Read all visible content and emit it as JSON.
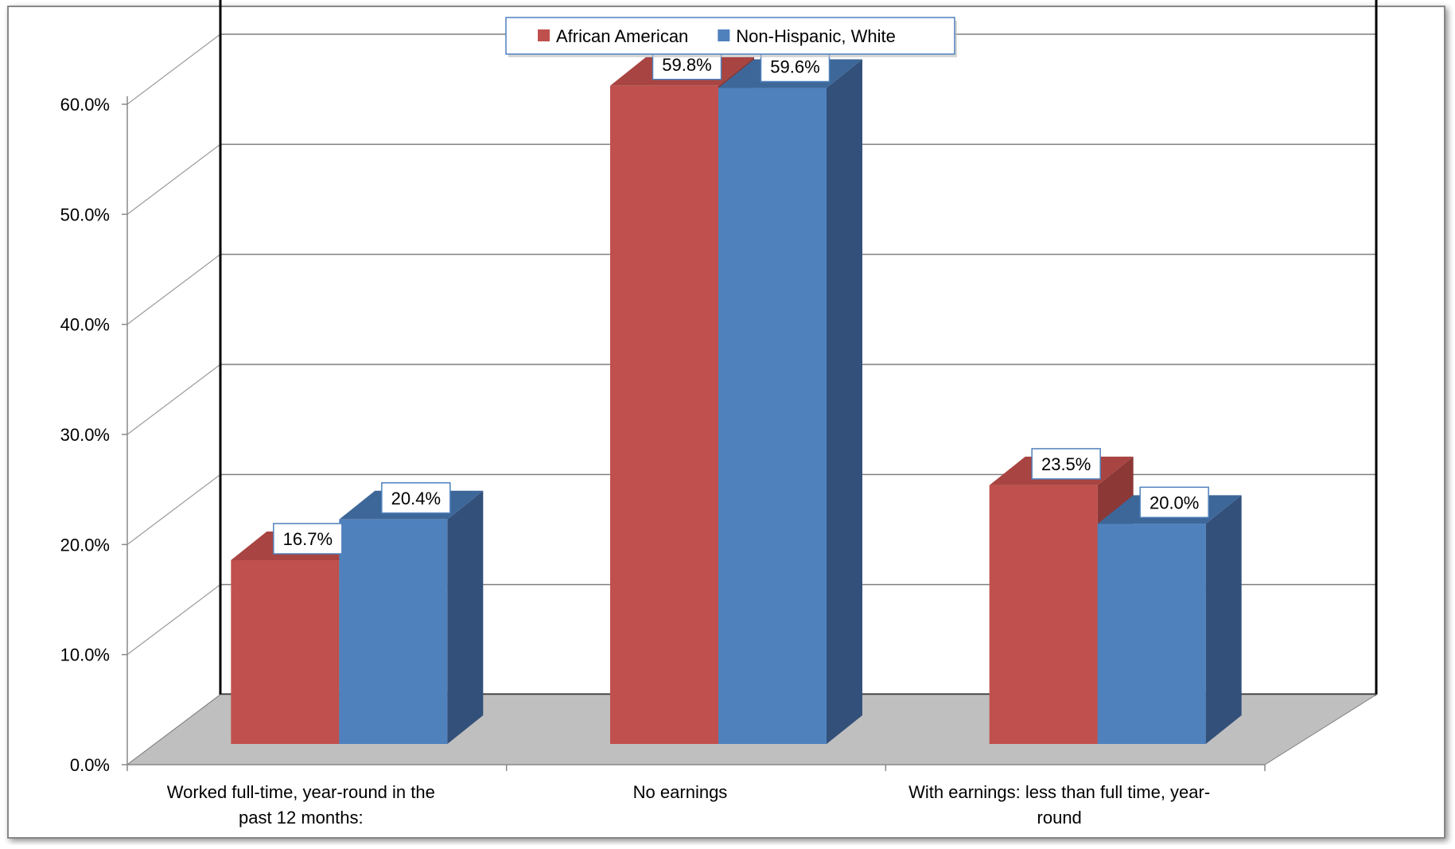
{
  "chart_data": {
    "type": "bar",
    "style": "3d-clustered-column",
    "title": "",
    "xlabel": "",
    "ylabel": "",
    "categories": [
      "Worked full-time, year-round in the past 12 months:",
      "No earnings",
      "With earnings: less than full time, year-round"
    ],
    "category_lines": [
      [
        "Worked full-time, year-round in the",
        "past 12 months:"
      ],
      [
        "No earnings"
      ],
      [
        "With earnings: less than full time, year-",
        "round"
      ]
    ],
    "series": [
      {
        "name": "African American",
        "values": [
          16.7,
          59.8,
          23.5
        ],
        "labels": [
          "16.7%",
          "59.8%",
          "23.5%"
        ],
        "color": "#c0504d",
        "top_color": "#a84441",
        "side_color": "#8c3836"
      },
      {
        "name": "Non-Hispanic, White",
        "values": [
          20.4,
          59.6,
          20.0
        ],
        "labels": [
          "20.4%",
          "59.6%",
          "20.0%"
        ],
        "color": "#4f81bd",
        "top_color": "#3d6799",
        "side_color": "#33507a"
      }
    ],
    "ylim": [
      0,
      60
    ],
    "yticks": [
      0,
      10,
      20,
      30,
      40,
      50,
      60
    ],
    "ytick_labels": [
      "0.0%",
      "10.0%",
      "20.0%",
      "30.0%",
      "40.0%",
      "50.0%",
      "60.0%"
    ],
    "grid": true,
    "legend": "top-center",
    "floor_color": "#bfbfbf"
  }
}
